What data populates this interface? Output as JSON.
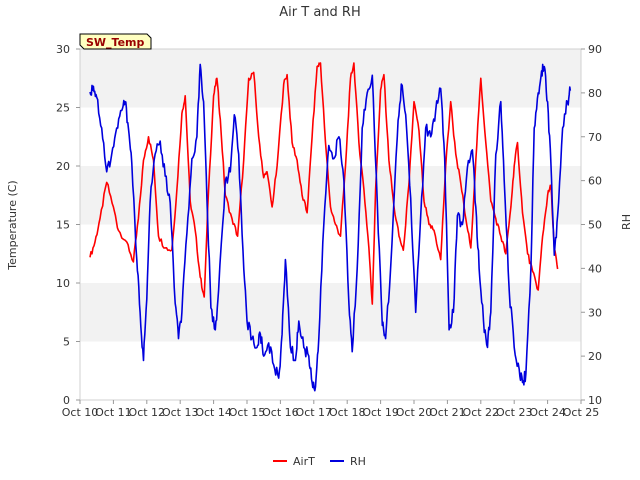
{
  "chart_data": {
    "type": "line",
    "title": "Air T and RH",
    "badge": "SW_Temp",
    "ylabel": "Temperature (C)",
    "y2label": "RH",
    "ylim": [
      0,
      30
    ],
    "y2lim": [
      10,
      90
    ],
    "yticks": [
      "0",
      "5",
      "10",
      "15",
      "20",
      "25",
      "30"
    ],
    "y2ticks": [
      "10",
      "20",
      "30",
      "40",
      "50",
      "60",
      "70",
      "80",
      "90"
    ],
    "xticks": [
      "Oct 10",
      "Oct 11",
      "Oct 12",
      "Oct 13",
      "Oct 14",
      "Oct 15",
      "Oct 16",
      "Oct 17",
      "Oct 18",
      "Oct 19",
      "Oct 20",
      "Oct 21",
      "Oct 22",
      "Oct 23",
      "Oct 24",
      "Oct 25"
    ],
    "x_days_range": [
      10,
      25
    ],
    "colors": {
      "AirT": "#ff0000",
      "RH": "#0000dd",
      "band": "#f2f2f2",
      "badge_fill": "#ffffc0",
      "badge_text": "#990000"
    },
    "series": [
      {
        "name": "AirT",
        "axis": "left",
        "points": [
          [
            10.3,
            12.2
          ],
          [
            10.45,
            13.5
          ],
          [
            10.6,
            15.5
          ],
          [
            10.8,
            18.6
          ],
          [
            11.0,
            16.5
          ],
          [
            11.15,
            14.5
          ],
          [
            11.4,
            13.5
          ],
          [
            11.6,
            11.8
          ],
          [
            11.75,
            15.5
          ],
          [
            11.9,
            20.5
          ],
          [
            12.05,
            22.5
          ],
          [
            12.2,
            20.5
          ],
          [
            12.35,
            14.0
          ],
          [
            12.55,
            13.0
          ],
          [
            12.75,
            12.8
          ],
          [
            12.9,
            18.0
          ],
          [
            13.05,
            24.5
          ],
          [
            13.15,
            26.0
          ],
          [
            13.3,
            17.0
          ],
          [
            13.45,
            14.5
          ],
          [
            13.6,
            10.5
          ],
          [
            13.72,
            8.8
          ],
          [
            13.85,
            18.0
          ],
          [
            14.0,
            26.0
          ],
          [
            14.1,
            27.5
          ],
          [
            14.2,
            24.0
          ],
          [
            14.35,
            17.5
          ],
          [
            14.55,
            15.5
          ],
          [
            14.72,
            14.0
          ],
          [
            14.9,
            20.5
          ],
          [
            15.05,
            27.5
          ],
          [
            15.2,
            28.0
          ],
          [
            15.35,
            22.5
          ],
          [
            15.5,
            19.0
          ],
          [
            15.6,
            19.5
          ],
          [
            15.75,
            16.5
          ],
          [
            15.9,
            20.0
          ],
          [
            16.1,
            27.0
          ],
          [
            16.2,
            27.8
          ],
          [
            16.35,
            22.0
          ],
          [
            16.5,
            20.5
          ],
          [
            16.65,
            17.5
          ],
          [
            16.8,
            16.0
          ],
          [
            16.95,
            22.5
          ],
          [
            17.1,
            28.5
          ],
          [
            17.2,
            28.8
          ],
          [
            17.35,
            22.0
          ],
          [
            17.5,
            16.5
          ],
          [
            17.65,
            15.0
          ],
          [
            17.8,
            14.0
          ],
          [
            17.95,
            20.0
          ],
          [
            18.1,
            27.5
          ],
          [
            18.2,
            28.8
          ],
          [
            18.35,
            22.0
          ],
          [
            18.5,
            18.0
          ],
          [
            18.65,
            13.0
          ],
          [
            18.75,
            8.2
          ],
          [
            18.85,
            18.0
          ],
          [
            19.0,
            26.5
          ],
          [
            19.1,
            27.8
          ],
          [
            19.25,
            20.5
          ],
          [
            19.4,
            16.5
          ],
          [
            19.55,
            14.0
          ],
          [
            19.68,
            12.8
          ],
          [
            19.85,
            18.5
          ],
          [
            20.0,
            25.5
          ],
          [
            20.15,
            23.0
          ],
          [
            20.3,
            17.0
          ],
          [
            20.45,
            15.0
          ],
          [
            20.6,
            14.5
          ],
          [
            20.8,
            12.0
          ],
          [
            20.95,
            20.0
          ],
          [
            21.1,
            25.5
          ],
          [
            21.25,
            21.0
          ],
          [
            21.4,
            18.5
          ],
          [
            21.55,
            15.5
          ],
          [
            21.7,
            13.0
          ],
          [
            21.85,
            20.5
          ],
          [
            22.0,
            27.5
          ],
          [
            22.15,
            22.0
          ],
          [
            22.3,
            17.0
          ],
          [
            22.45,
            15.5
          ],
          [
            22.6,
            14.0
          ],
          [
            22.75,
            12.5
          ],
          [
            22.9,
            16.5
          ],
          [
            23.0,
            20.0
          ],
          [
            23.1,
            22.0
          ],
          [
            23.25,
            16.0
          ],
          [
            23.4,
            12.5
          ],
          [
            23.55,
            11.0
          ],
          [
            23.72,
            9.4
          ],
          [
            23.85,
            14.0
          ],
          [
            24.0,
            17.5
          ],
          [
            24.1,
            18.3
          ],
          [
            24.2,
            13.0
          ],
          [
            24.3,
            11.2
          ]
        ]
      },
      {
        "name": "RH",
        "axis": "right",
        "points": [
          [
            10.3,
            80.2
          ],
          [
            10.4,
            81.5
          ],
          [
            10.5,
            79.0
          ],
          [
            10.65,
            72.0
          ],
          [
            10.8,
            62.0
          ],
          [
            10.95,
            66.0
          ],
          [
            11.1,
            72.0
          ],
          [
            11.25,
            76.0
          ],
          [
            11.35,
            78.0
          ],
          [
            11.45,
            72.0
          ],
          [
            11.55,
            64.0
          ],
          [
            11.7,
            42.0
          ],
          [
            11.8,
            30.0
          ],
          [
            11.9,
            19.0
          ],
          [
            12.0,
            33.0
          ],
          [
            12.1,
            55.0
          ],
          [
            12.25,
            66.0
          ],
          [
            12.4,
            69.0
          ],
          [
            12.55,
            61.0
          ],
          [
            12.7,
            55.0
          ],
          [
            12.85,
            32.0
          ],
          [
            12.95,
            24.0
          ],
          [
            13.05,
            30.0
          ],
          [
            13.2,
            48.0
          ],
          [
            13.35,
            65.0
          ],
          [
            13.5,
            70.0
          ],
          [
            13.6,
            86.5
          ],
          [
            13.7,
            78.0
          ],
          [
            13.8,
            56.0
          ],
          [
            13.92,
            31.0
          ],
          [
            14.05,
            26.0
          ],
          [
            14.15,
            35.0
          ],
          [
            14.35,
            60.0
          ],
          [
            14.5,
            62.0
          ],
          [
            14.62,
            75.0
          ],
          [
            14.75,
            66.0
          ],
          [
            14.88,
            44.0
          ],
          [
            15.0,
            28.0
          ],
          [
            15.15,
            24.0
          ],
          [
            15.3,
            22.0
          ],
          [
            15.4,
            25.0
          ],
          [
            15.5,
            20.0
          ],
          [
            15.65,
            23.0
          ],
          [
            15.8,
            18.0
          ],
          [
            15.95,
            15.0
          ],
          [
            16.05,
            25.0
          ],
          [
            16.15,
            42.0
          ],
          [
            16.3,
            22.0
          ],
          [
            16.45,
            19.0
          ],
          [
            16.55,
            28.0
          ],
          [
            16.7,
            22.0
          ],
          [
            16.85,
            20.0
          ],
          [
            16.95,
            14.0
          ],
          [
            17.05,
            13.0
          ],
          [
            17.15,
            24.0
          ],
          [
            17.3,
            50.0
          ],
          [
            17.45,
            68.0
          ],
          [
            17.6,
            65.0
          ],
          [
            17.75,
            70.0
          ],
          [
            17.9,
            60.0
          ],
          [
            18.05,
            32.0
          ],
          [
            18.15,
            21.0
          ],
          [
            18.3,
            40.0
          ],
          [
            18.45,
            72.0
          ],
          [
            18.6,
            80.0
          ],
          [
            18.75,
            84.0
          ],
          [
            18.9,
            55.0
          ],
          [
            19.05,
            27.0
          ],
          [
            19.15,
            24.0
          ],
          [
            19.3,
            40.0
          ],
          [
            19.5,
            70.0
          ],
          [
            19.62,
            82.0
          ],
          [
            19.75,
            75.0
          ],
          [
            19.9,
            56.0
          ],
          [
            20.05,
            30.0
          ],
          [
            20.2,
            52.0
          ],
          [
            20.35,
            72.0
          ],
          [
            20.5,
            70.0
          ],
          [
            20.65,
            76.0
          ],
          [
            20.8,
            81.0
          ],
          [
            20.92,
            65.0
          ],
          [
            21.05,
            26.0
          ],
          [
            21.18,
            30.0
          ],
          [
            21.3,
            52.0
          ],
          [
            21.45,
            50.0
          ],
          [
            21.6,
            63.0
          ],
          [
            21.75,
            67.0
          ],
          [
            21.85,
            54.0
          ],
          [
            21.95,
            40.0
          ],
          [
            22.08,
            28.0
          ],
          [
            22.2,
            22.0
          ],
          [
            22.3,
            30.0
          ],
          [
            22.45,
            66.0
          ],
          [
            22.6,
            78.0
          ],
          [
            22.7,
            60.0
          ],
          [
            22.85,
            35.0
          ],
          [
            23.0,
            22.0
          ],
          [
            23.15,
            17.0
          ],
          [
            23.25,
            14.0
          ],
          [
            23.35,
            16.0
          ],
          [
            23.5,
            40.0
          ],
          [
            23.6,
            72.0
          ],
          [
            23.72,
            80.0
          ],
          [
            23.82,
            85.0
          ],
          [
            23.9,
            86.0
          ],
          [
            24.0,
            78.0
          ],
          [
            24.1,
            64.0
          ],
          [
            24.2,
            43.0
          ],
          [
            24.3,
            52.0
          ],
          [
            24.45,
            72.0
          ],
          [
            24.6,
            78.0
          ],
          [
            24.68,
            80.5
          ]
        ]
      }
    ]
  }
}
